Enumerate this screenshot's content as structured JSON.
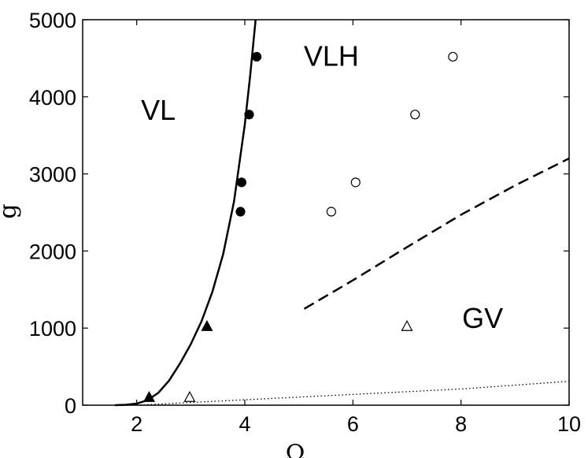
{
  "chart_data": {
    "type": "scatter",
    "xlabel": "Ω",
    "ylabel": "g",
    "xlim": [
      1,
      10
    ],
    "ylim": [
      0,
      5000
    ],
    "grid": false,
    "x_ticks": [
      2,
      4,
      6,
      8,
      10
    ],
    "y_ticks": [
      0,
      1000,
      2000,
      3000,
      4000,
      5000
    ],
    "region_labels": [
      {
        "text": "VL",
        "x": 2.4,
        "y": 3700
      },
      {
        "text": "VLH",
        "x": 5.6,
        "y": 4400
      },
      {
        "text": "GV",
        "x": 8.4,
        "y": 1000
      }
    ],
    "series": [
      {
        "marker": "filled-circle",
        "points": [
          [
            4.22,
            4520
          ],
          [
            4.08,
            3770
          ],
          [
            3.94,
            2890
          ],
          [
            3.92,
            2510
          ]
        ]
      },
      {
        "marker": "open-circle",
        "points": [
          [
            7.85,
            4520
          ],
          [
            7.15,
            3770
          ],
          [
            6.05,
            2890
          ],
          [
            5.6,
            2510
          ]
        ]
      },
      {
        "marker": "filled-triangle",
        "points": [
          [
            2.23,
            100
          ],
          [
            3.3,
            1020
          ]
        ]
      },
      {
        "marker": "open-triangle",
        "points": [
          [
            2.98,
            100
          ],
          [
            7.0,
            1020
          ]
        ]
      }
    ],
    "curves": [
      {
        "style": "solid",
        "points": [
          [
            1.6,
            0
          ],
          [
            1.8,
            5
          ],
          [
            2.0,
            20
          ],
          [
            2.2,
            65
          ],
          [
            2.4,
            160
          ],
          [
            2.6,
            320
          ],
          [
            2.8,
            540
          ],
          [
            3.0,
            790
          ],
          [
            3.2,
            1090
          ],
          [
            3.4,
            1470
          ],
          [
            3.6,
            1960
          ],
          [
            3.8,
            2640
          ],
          [
            4.0,
            3640
          ],
          [
            4.1,
            4280
          ],
          [
            4.2,
            5000
          ]
        ]
      },
      {
        "style": "dashed",
        "points": [
          [
            5.1,
            1250
          ],
          [
            6.0,
            1620
          ],
          [
            7.0,
            2050
          ],
          [
            8.0,
            2470
          ],
          [
            9.0,
            2850
          ],
          [
            10.0,
            3200
          ]
        ]
      },
      {
        "style": "dotted",
        "points": [
          [
            2.0,
            0
          ],
          [
            4.0,
            70
          ],
          [
            6.0,
            140
          ],
          [
            8.0,
            210
          ],
          [
            10.0,
            310
          ]
        ]
      }
    ]
  }
}
